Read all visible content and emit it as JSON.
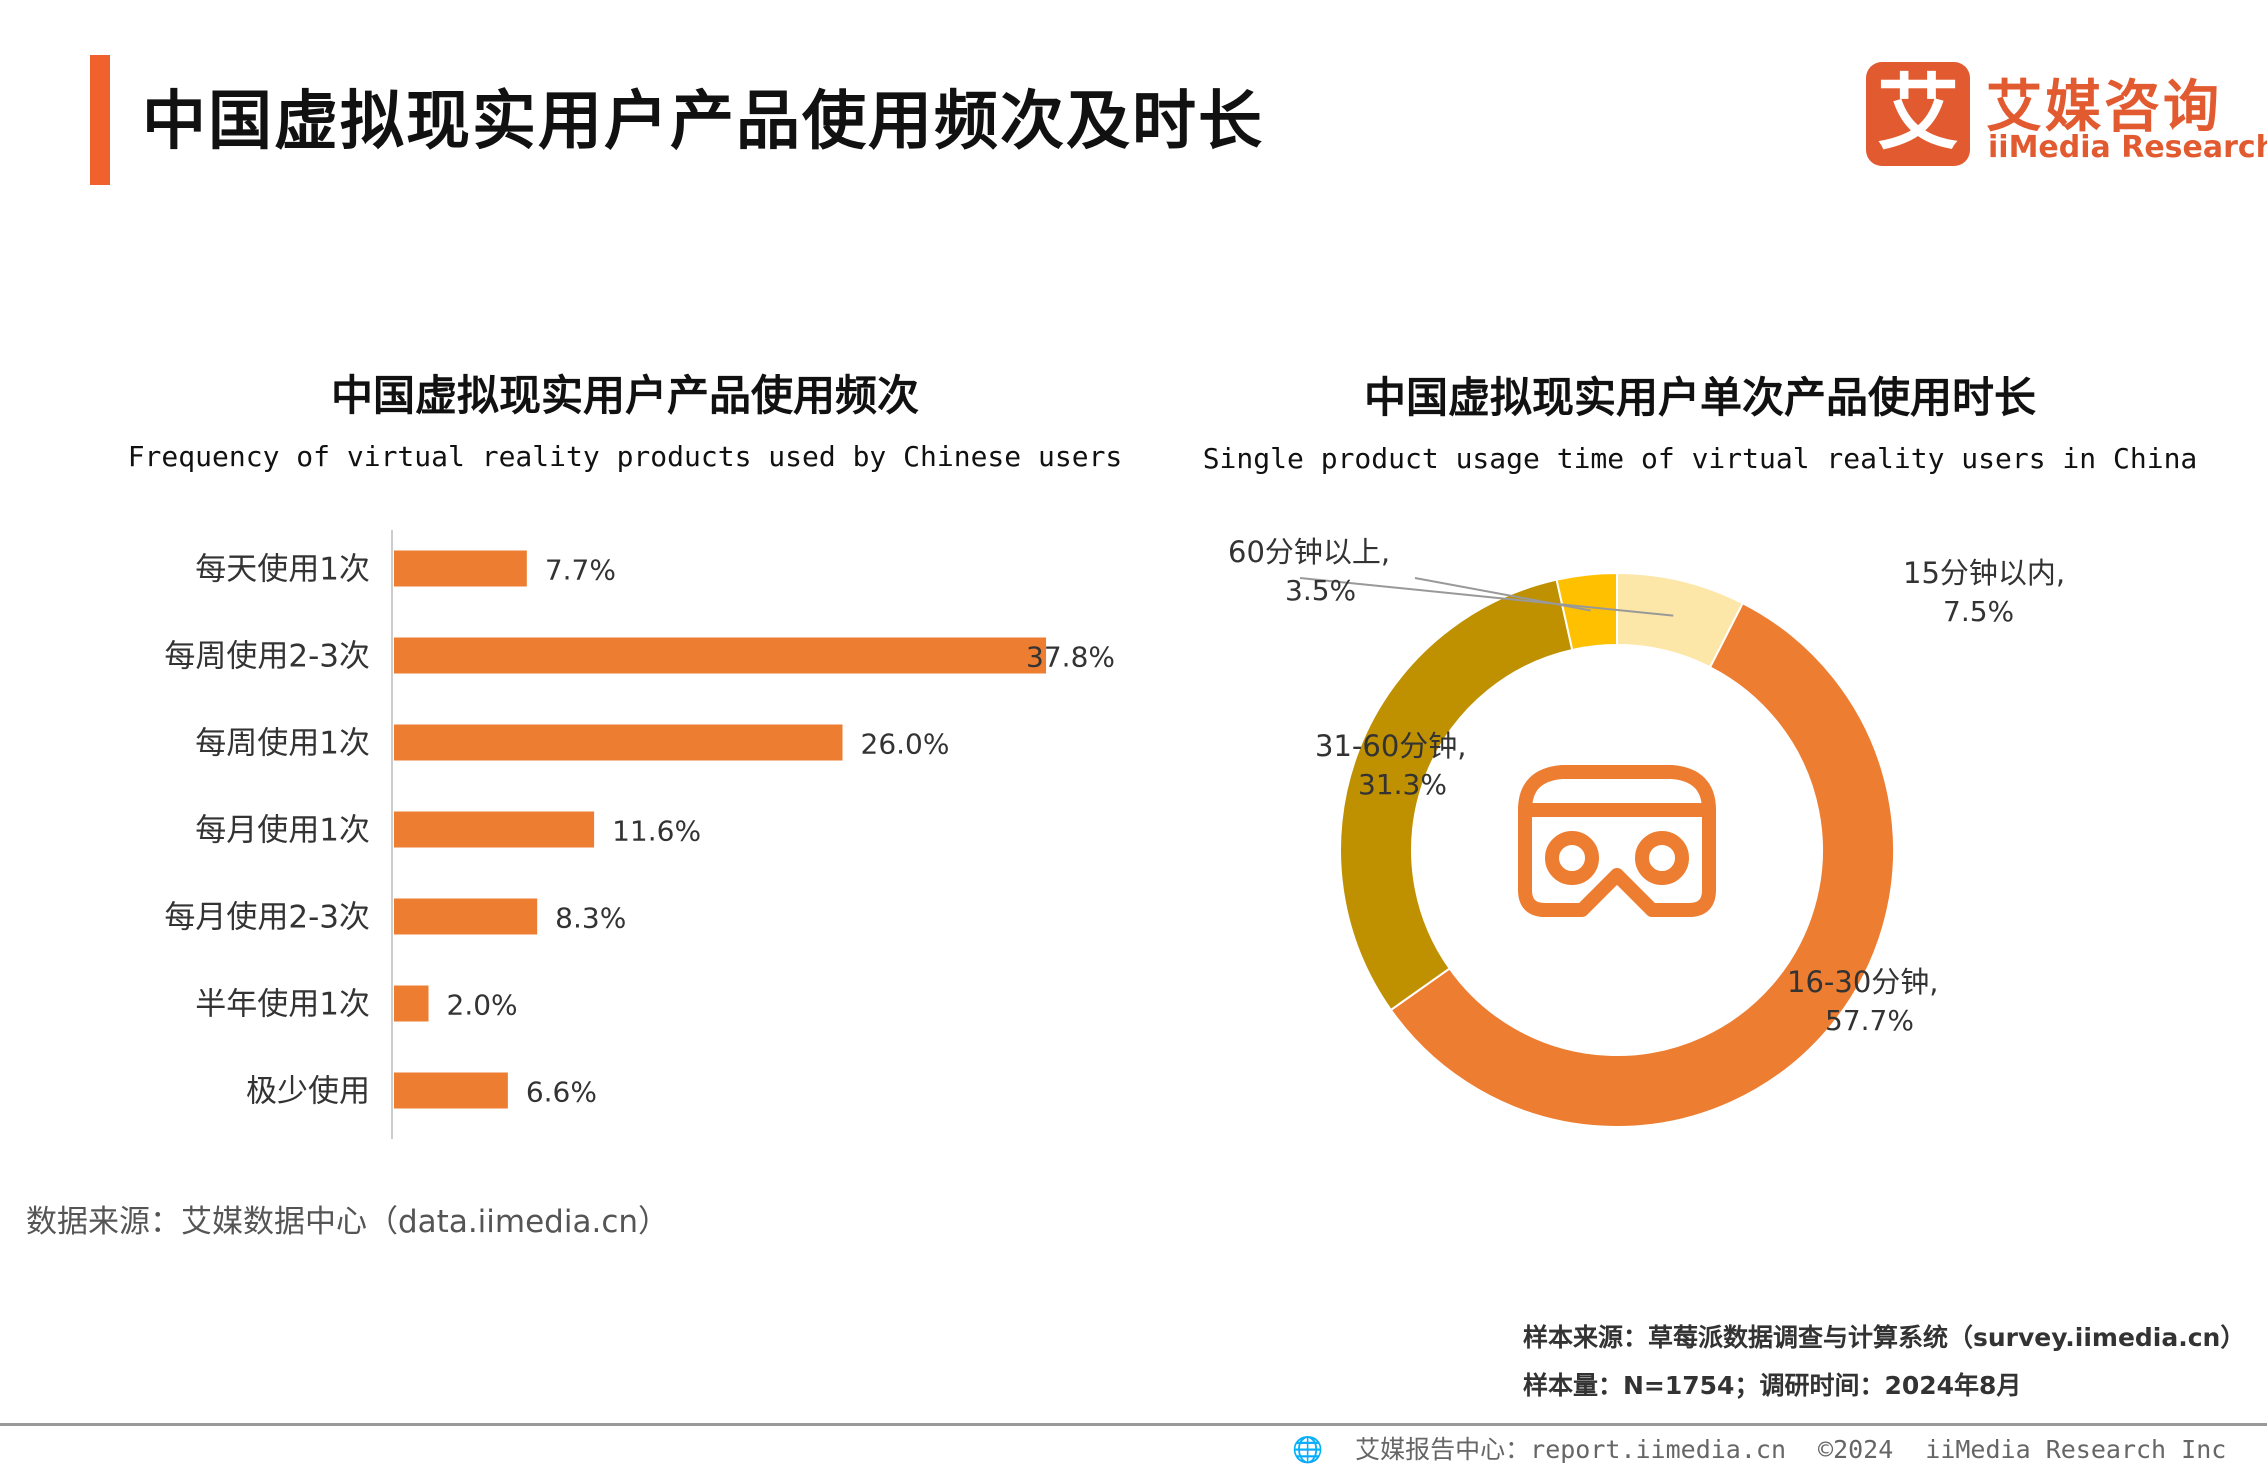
{
  "header": {
    "title": "中国虚拟现实用户产品使用频次及时长",
    "logo_cn": "艾媒咨询",
    "logo_en": "iiMedia Research",
    "logo_mark": "艾",
    "accent_color": "#f0612e"
  },
  "chart_data": [
    {
      "type": "bar",
      "orientation": "horizontal",
      "title": "中国虚拟现实用户产品使用频次",
      "subtitle": "Frequency of virtual reality products used by Chinese users",
      "categories": [
        "每天使用1次",
        "每周使用2-3次",
        "每周使用1次",
        "每月使用1次",
        "每月使用2-3次",
        "半年使用1次",
        "极少使用"
      ],
      "values": [
        7.7,
        37.8,
        26.0,
        11.6,
        8.3,
        2.0,
        6.6
      ],
      "value_labels": [
        "7.7%",
        "37.8%",
        "26.0%",
        "11.6%",
        "8.3%",
        "2.0%",
        "6.6%"
      ],
      "xlim": [
        0,
        40
      ],
      "color": "#ed7d31"
    },
    {
      "type": "pie",
      "donut": true,
      "title": "中国虚拟现实用户单次产品使用时长",
      "subtitle": "Single product usage time of virtual reality users in China",
      "slices": [
        {
          "label": "15分钟以内,",
          "value": 7.5,
          "value_label": "7.5%",
          "color": "#fde7a8"
        },
        {
          "label": "16-30分钟,",
          "value": 57.7,
          "value_label": "57.7%",
          "color": "#ed7d31"
        },
        {
          "label": "31-60分钟,",
          "value": 31.3,
          "value_label": "31.3%",
          "color": "#bf9000"
        },
        {
          "label": "60分钟以上,",
          "value": 3.5,
          "value_label": "3.5%",
          "color": "#ffc000"
        }
      ],
      "center_icon": "vr-headset-icon"
    }
  ],
  "source": "数据来源：艾媒数据中心（data.iimedia.cn）",
  "sample_source": "样本来源：草莓派数据调查与计算系统（survey.iimedia.cn）",
  "sample_size": "样本量：N=1754；调研时间：2024年8月",
  "footer": {
    "center": "艾媒报告中心：report.iimedia.cn",
    "copyright": "©2024",
    "company": "iiMedia Research Inc",
    "icon": "globe-icon"
  }
}
